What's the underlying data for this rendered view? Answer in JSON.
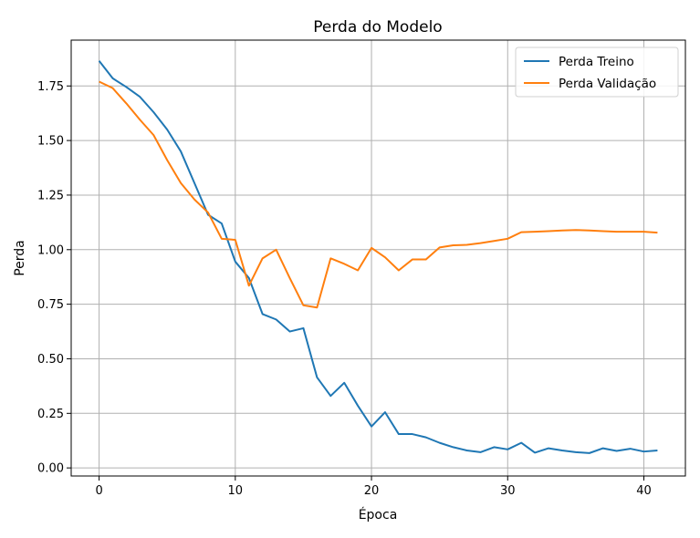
{
  "chart_data": {
    "type": "line",
    "title": "Perda do Modelo",
    "xlabel": "Época",
    "ylabel": "Perda",
    "xlim": [
      -2.05,
      43.05
    ],
    "ylim": [
      -0.037,
      1.96
    ],
    "xticks": [
      0,
      10,
      20,
      30,
      40
    ],
    "yticks": [
      0.0,
      0.25,
      0.5,
      0.75,
      1.0,
      1.25,
      1.5,
      1.75
    ],
    "ytick_labels": [
      "0.00",
      "0.25",
      "0.50",
      "0.75",
      "1.00",
      "1.25",
      "1.50",
      "1.75"
    ],
    "grid": true,
    "legend_position": "top-right",
    "x": [
      0,
      1,
      2,
      3,
      4,
      5,
      6,
      7,
      8,
      9,
      10,
      11,
      12,
      13,
      14,
      15,
      16,
      17,
      18,
      19,
      20,
      21,
      22,
      23,
      24,
      25,
      26,
      27,
      28,
      29,
      30,
      31,
      32,
      33,
      34,
      35,
      36,
      37,
      38,
      39,
      40,
      41
    ],
    "series": [
      {
        "name": "Perda Treino",
        "color": "#1f77b4",
        "values": [
          1.865,
          1.785,
          1.745,
          1.7,
          1.63,
          1.55,
          1.45,
          1.305,
          1.16,
          1.12,
          0.945,
          0.87,
          0.705,
          0.68,
          0.625,
          0.64,
          0.415,
          0.33,
          0.39,
          0.285,
          0.19,
          0.255,
          0.155,
          0.155,
          0.14,
          0.115,
          0.095,
          0.08,
          0.072,
          0.095,
          0.085,
          0.115,
          0.07,
          0.09,
          0.08,
          0.072,
          0.068,
          0.09,
          0.078,
          0.088,
          0.075,
          0.08
        ]
      },
      {
        "name": "Perda Validação",
        "color": "#ff7f0e",
        "values": [
          1.77,
          1.74,
          1.67,
          1.595,
          1.525,
          1.41,
          1.305,
          1.23,
          1.17,
          1.05,
          1.045,
          0.835,
          0.96,
          1.0,
          0.87,
          0.745,
          0.735,
          0.96,
          0.935,
          0.905,
          1.008,
          0.965,
          0.905,
          0.955,
          0.955,
          1.01,
          1.02,
          1.022,
          1.03,
          1.04,
          1.05,
          1.08,
          1.082,
          1.085,
          1.088,
          1.09,
          1.088,
          1.085,
          1.082,
          1.082,
          1.082,
          1.078
        ]
      }
    ]
  }
}
